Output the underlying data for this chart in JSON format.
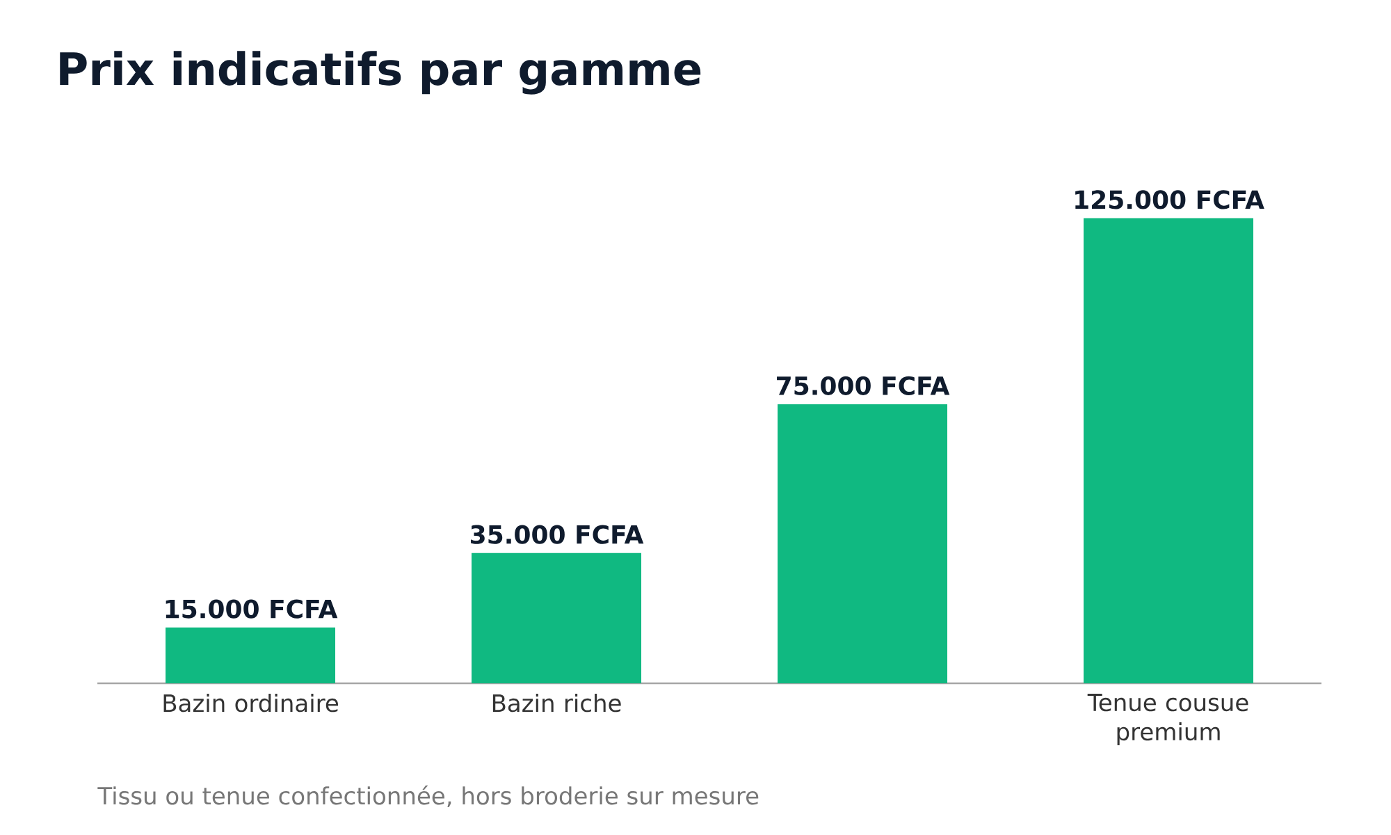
{
  "chart_data": {
    "type": "bar",
    "title": "Prix indicatifs par gamme",
    "categories": [
      "Bazin ordinaire",
      "Bazin riche",
      null,
      "Tenue cousue premium"
    ],
    "values": [
      15000,
      35000,
      75000,
      125000
    ],
    "value_labels": [
      "15.000 FCFA",
      "35.000 FCFA",
      "75.000 FCFA",
      "125.000 FCFA"
    ],
    "color": "#10b981",
    "annotations": [
      "Tissu ou tenue confectionnée, hors broderie sur mesure"
    ]
  }
}
